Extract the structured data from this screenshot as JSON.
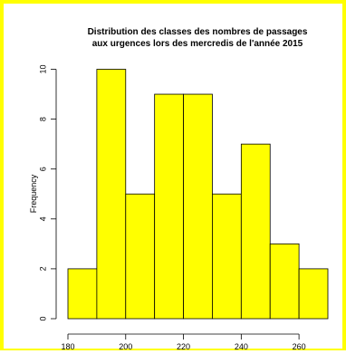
{
  "chart_data": {
    "type": "bar",
    "title": "Distribution des classes des nombres de passages\naux urgences lors des mercredis de l'année 2015",
    "title_lines": [
      "Distribution des classes des nombres de passages",
      "aux urgences lors des mercredis de l'année 2015"
    ],
    "xlabel": "",
    "ylabel": "Frequency",
    "bins": [
      {
        "from": 180,
        "to": 190,
        "count": 2
      },
      {
        "from": 190,
        "to": 200,
        "count": 10
      },
      {
        "from": 200,
        "to": 210,
        "count": 5
      },
      {
        "from": 210,
        "to": 220,
        "count": 9
      },
      {
        "from": 220,
        "to": 230,
        "count": 9
      },
      {
        "from": 230,
        "to": 240,
        "count": 5
      },
      {
        "from": 240,
        "to": 250,
        "count": 7
      },
      {
        "from": 250,
        "to": 260,
        "count": 3
      },
      {
        "from": 260,
        "to": 270,
        "count": 2
      }
    ],
    "x_ticks": [
      180,
      200,
      220,
      240,
      260
    ],
    "y_ticks": [
      0,
      2,
      4,
      6,
      8,
      10
    ],
    "xlim": [
      180,
      270
    ],
    "ylim": [
      0,
      10
    ],
    "bar_color": "#ffff00",
    "border_color": "#ffff00",
    "grid": false
  }
}
